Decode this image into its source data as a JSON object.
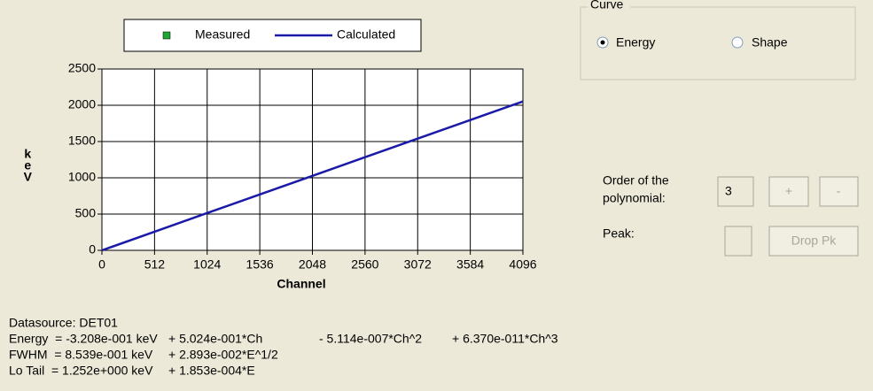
{
  "chart_data": {
    "type": "line",
    "x_label": "Channel",
    "y_label": "keV",
    "x": [
      0,
      512,
      1024,
      1536,
      2048,
      2560,
      3072,
      3584,
      4096
    ],
    "series": [
      {
        "name": "Measured",
        "color": "#22a33a",
        "values": [
          null,
          null,
          null,
          null,
          null,
          null,
          null,
          null,
          null
        ]
      },
      {
        "name": "Calculated",
        "color": "#1a1aa8",
        "values": [
          0,
          257,
          514,
          770,
          1027,
          1284,
          1540,
          1797,
          2053
        ]
      }
    ],
    "xlim": [
      0,
      4096
    ],
    "xticks": [
      0,
      512,
      1024,
      1536,
      2048,
      2560,
      3072,
      3584,
      4096
    ],
    "ylim": [
      0,
      2500
    ],
    "yticks": [
      0,
      500,
      1000,
      1500,
      2000,
      2500
    ],
    "grid": true,
    "legend": "top"
  },
  "panel": {
    "group_title": "Curve",
    "radios": [
      "Energy",
      "Shape"
    ],
    "order_label": [
      "Order of the",
      "polynomial:"
    ],
    "order_value": "3",
    "plus": "+",
    "minus": "-",
    "peak_label": "Peak:",
    "drop_button": "Drop Pk"
  },
  "info": {
    "datasource": "Datasource: DET01",
    "rows": [
      [
        "Energy  = -3.208e-001 keV",
        "+ 5.024e-001*Ch",
        "- 5.114e-007*Ch^2",
        "+ 6.370e-011*Ch^3"
      ],
      [
        "FWHM  = 8.539e-001 keV",
        "+ 2.893e-002*E^1/2"
      ],
      [
        "Lo Tail  = 1.252e+000 keV",
        "+ 1.853e-004*E"
      ]
    ]
  }
}
